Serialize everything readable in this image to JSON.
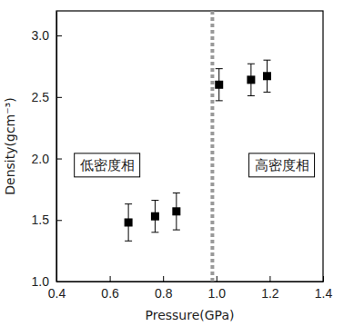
{
  "chart_data": {
    "type": "scatter",
    "x_label": "Pressure(GPa)",
    "y_label": "Density(gcm⁻³)",
    "x": [
      0.67,
      0.77,
      0.85,
      1.01,
      1.13,
      1.19
    ],
    "values": [
      1.48,
      1.53,
      1.57,
      2.6,
      2.64,
      2.67
    ],
    "errors": [
      0.15,
      0.13,
      0.15,
      0.13,
      0.13,
      0.13
    ],
    "color": "#000000",
    "marker": "square",
    "phase_boundary": 0.985,
    "annotations": [
      "低密度相",
      "高密度相"
    ],
    "xlim": [
      0.4,
      1.4
    ],
    "xticks": [
      0.4,
      0.6,
      0.8,
      {
        "value": 1.0,
        "label": "1.0"
      },
      1.2,
      1.4
    ],
    "ylim": [
      1.0,
      3.2
    ],
    "yticks": [
      {
        "value": 1.0,
        "label": "1.0"
      },
      1.5,
      {
        "value": 2.0,
        "label": "2.0"
      },
      2.5,
      {
        "value": 3.0,
        "label": "3.0"
      }
    ],
    "grid": false
  }
}
